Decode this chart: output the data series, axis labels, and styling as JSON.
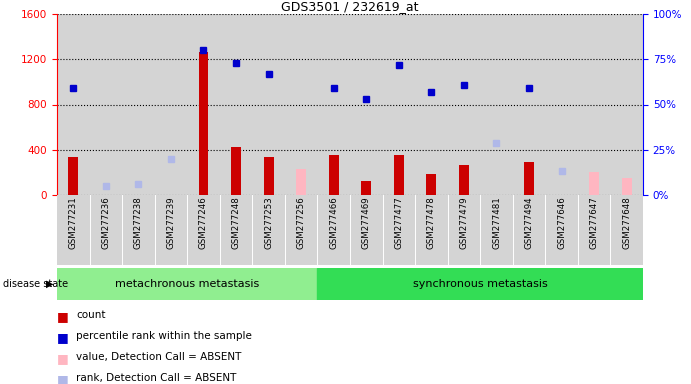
{
  "title": "GDS3501 / 232619_at",
  "samples": [
    "GSM277231",
    "GSM277236",
    "GSM277238",
    "GSM277239",
    "GSM277246",
    "GSM277248",
    "GSM277253",
    "GSM277256",
    "GSM277466",
    "GSM277469",
    "GSM277477",
    "GSM277478",
    "GSM277479",
    "GSM277481",
    "GSM277494",
    "GSM277646",
    "GSM277647",
    "GSM277648"
  ],
  "count_values": [
    340,
    0,
    0,
    0,
    1260,
    420,
    340,
    0,
    355,
    120,
    355,
    190,
    265,
    0,
    295,
    0,
    0,
    0
  ],
  "rank_values": [
    59,
    null,
    null,
    null,
    80,
    73,
    67,
    null,
    59,
    53,
    72,
    57,
    61,
    null,
    59,
    null,
    null,
    null
  ],
  "absent_value_values": [
    null,
    null,
    null,
    null,
    null,
    null,
    null,
    230,
    null,
    null,
    null,
    null,
    null,
    null,
    null,
    null,
    200,
    150
  ],
  "absent_rank_values": [
    null,
    5,
    6,
    20,
    null,
    null,
    null,
    null,
    null,
    null,
    null,
    null,
    null,
    29,
    null,
    13,
    null,
    null
  ],
  "groups": [
    {
      "label": "metachronous metastasis",
      "start": 0,
      "end": 8,
      "color": "#90ee90"
    },
    {
      "label": "synchronous metastasis",
      "start": 8,
      "end": 18,
      "color": "#33dd55"
    }
  ],
  "ylim_left": [
    0,
    1600
  ],
  "ylim_right": [
    0,
    100
  ],
  "yticks_left": [
    0,
    400,
    800,
    1200,
    1600
  ],
  "yticks_right": [
    0,
    25,
    50,
    75,
    100
  ],
  "ytick_labels_right": [
    "0%",
    "25%",
    "50%",
    "75%",
    "100%"
  ],
  "bar_color": "#cc0000",
  "rank_color": "#0000cc",
  "absent_value_color": "#ffb6c1",
  "absent_rank_color": "#b0b8e8",
  "col_bg_color": "#d4d4d4",
  "legend_items": [
    {
      "label": "count",
      "color": "#cc0000"
    },
    {
      "label": "percentile rank within the sample",
      "color": "#0000cc"
    },
    {
      "label": "value, Detection Call = ABSENT",
      "color": "#ffb6c1"
    },
    {
      "label": "rank, Detection Call = ABSENT",
      "color": "#b0b8e8"
    }
  ]
}
